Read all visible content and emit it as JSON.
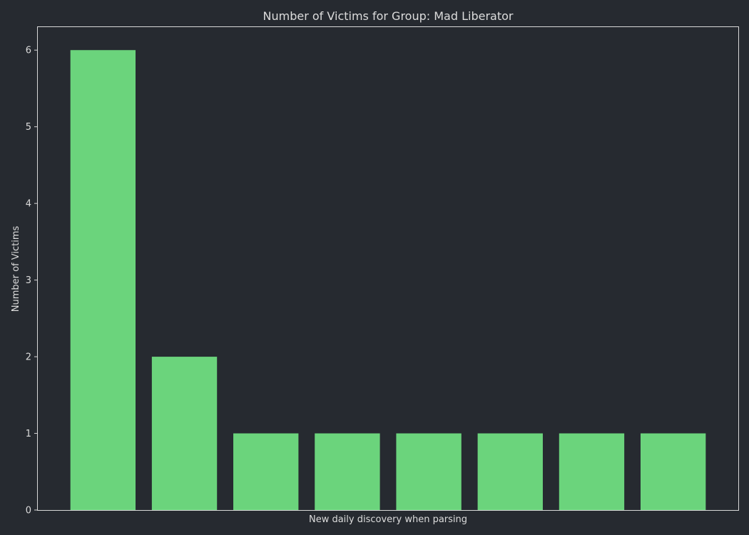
{
  "colors": {
    "background": "#262a30",
    "bar": "#6bd47c",
    "frame": "#d8d8d8",
    "text": "#dcdcdc"
  },
  "chart_data": {
    "type": "bar",
    "title": "Number of Victims for Group: Mad Liberator",
    "xlabel": "New daily discovery when parsing",
    "ylabel": "Number of Victims",
    "categories": [
      "",
      "",
      "",
      "",
      "",
      "",
      "",
      ""
    ],
    "values": [
      6,
      2,
      1,
      1,
      1,
      1,
      1,
      1
    ],
    "ylim": [
      0,
      6.3
    ],
    "yticks": [
      0,
      1,
      2,
      3,
      4,
      5,
      6
    ],
    "grid": false,
    "legend": "none"
  }
}
